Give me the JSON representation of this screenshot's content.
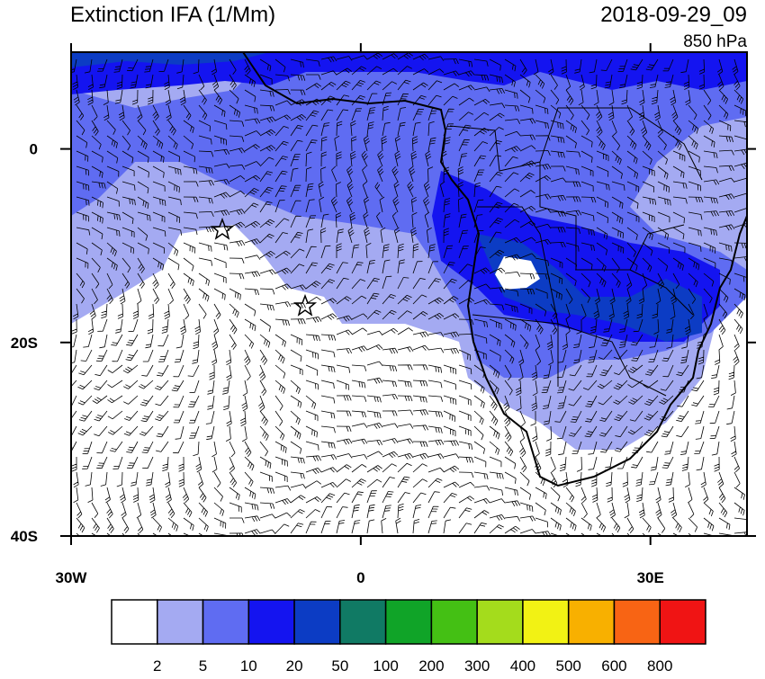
{
  "map": {
    "title": "Extinction IFA (1/Mm)",
    "valid_time": "2018-09-29_09",
    "level": "850 hPa",
    "xlim": [
      -30,
      40
    ],
    "ylim": [
      -40,
      10
    ],
    "xticks": [
      {
        "value": -30,
        "label": "30W"
      },
      0,
      {
        "value": 30,
        "label": "30E"
      }
    ],
    "yticks": [
      0,
      {
        "value": -20,
        "label": "20S"
      },
      {
        "value": -40,
        "label": "40S"
      }
    ],
    "colorbar": {
      "levels": [
        2,
        5,
        10,
        20,
        50,
        100,
        200,
        300,
        400,
        500,
        600,
        800
      ],
      "colors": [
        "#ffffff",
        "#a4aaf2",
        "#5f6cf2",
        "#1414f0",
        "#0c3cc4",
        "#107a64",
        "#10a428",
        "#44c014",
        "#a4dc1c",
        "#f2f214",
        "#f8b000",
        "#f86414",
        "#f01414"
      ]
    }
  }
}
